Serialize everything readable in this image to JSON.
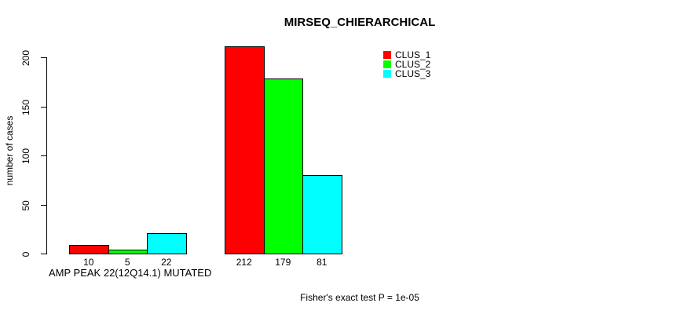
{
  "chart_data": {
    "type": "bar",
    "title": "MIRSEQ_CHIERARCHICAL",
    "ylabel": "number of cases",
    "xlabel": "",
    "ylim": [
      0,
      200
    ],
    "yticks": [
      0,
      50,
      100,
      150,
      200
    ],
    "grid": false,
    "legend_position": "top-right",
    "categories": [
      "AMP PEAK 22(12Q14.1) MUTATED",
      ""
    ],
    "series": [
      {
        "name": "CLUS_1",
        "color": "#ff0000",
        "values": [
          10,
          212
        ]
      },
      {
        "name": "CLUS_2",
        "color": "#00ff00",
        "values": [
          5,
          179
        ]
      },
      {
        "name": "CLUS_3",
        "color": "#00ffff",
        "values": [
          22,
          81
        ]
      }
    ],
    "annotation": "Fisher's exact test P = 1e-05"
  }
}
